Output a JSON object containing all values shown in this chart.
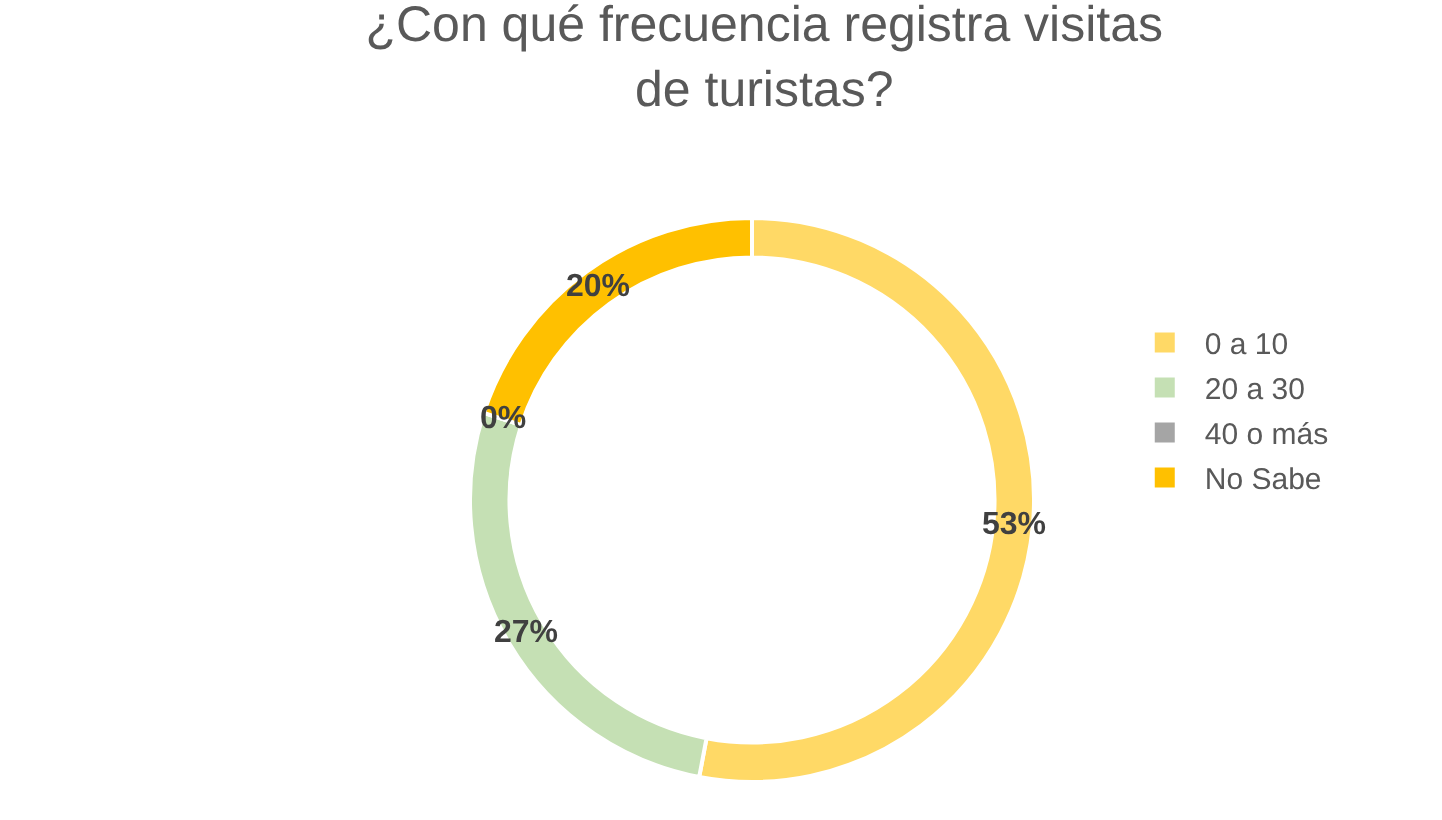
{
  "chart_data": {
    "type": "donut",
    "title": "¿Con qué frecuencia registra visitas\nde turistas?",
    "categories": [
      "0 a 10",
      "20 a 30",
      "40 o más",
      "No Sabe"
    ],
    "values": [
      53,
      27,
      0,
      20
    ],
    "colors": [
      "#ffd966",
      "#c5e0b4",
      "#a5a5a5",
      "#ffc000"
    ],
    "value_labels": [
      "53%",
      "27%",
      "0%",
      "20%"
    ],
    "legend": "right"
  }
}
